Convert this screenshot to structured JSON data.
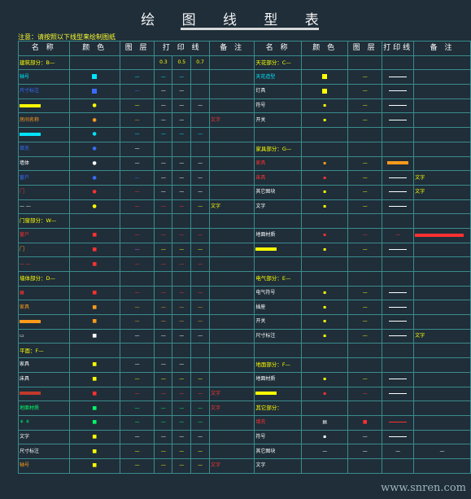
{
  "title": "绘 图 线 型 表",
  "note": "注意：请按照以下线型来绘制图纸",
  "headers": [
    "名 称",
    "颜 色",
    "图 层",
    "打 印 线",
    "备 注",
    "名 称",
    "颜 色",
    "图 层",
    "打印线",
    "备 注"
  ],
  "print_subheaders": [
    "0.3",
    "0.5",
    "0.7"
  ],
  "sections": {
    "s1": "建筑部分：B—",
    "s2": "门窗部分：W—",
    "s3": "墙体部分：D—",
    "s4": "家具部分：G—",
    "s5": "家具部分：G—",
    "s6": "天花部分：C—",
    "s7": "地面部分：F—",
    "s8": "电气部分：E—",
    "s9": "平面：F—",
    "s10": "其它部分："
  },
  "labels": {
    "axis": "轴号",
    "dim": "尺寸标注",
    "room": "房间名称",
    "wall": "墙体",
    "door": "门",
    "window": "窗户",
    "furniture": "家具",
    "bed": "床具",
    "lamp": "灯具",
    "socket": "插座",
    "switch": "开关",
    "text": "文字",
    "hatch": "填充",
    "symbol": "符号",
    "floor": "地面材质",
    "ceiling": "天花造型",
    "elec": "电气符号",
    "other": "其它图块"
  },
  "colors": {
    "bg": "#1f2e39",
    "grid": "#3a8c8c",
    "yellow": "#ffff00",
    "red": "#ff3030",
    "cyan": "#00e5ff",
    "blue": "#3a6cff"
  },
  "watermark": "www.snren.com"
}
